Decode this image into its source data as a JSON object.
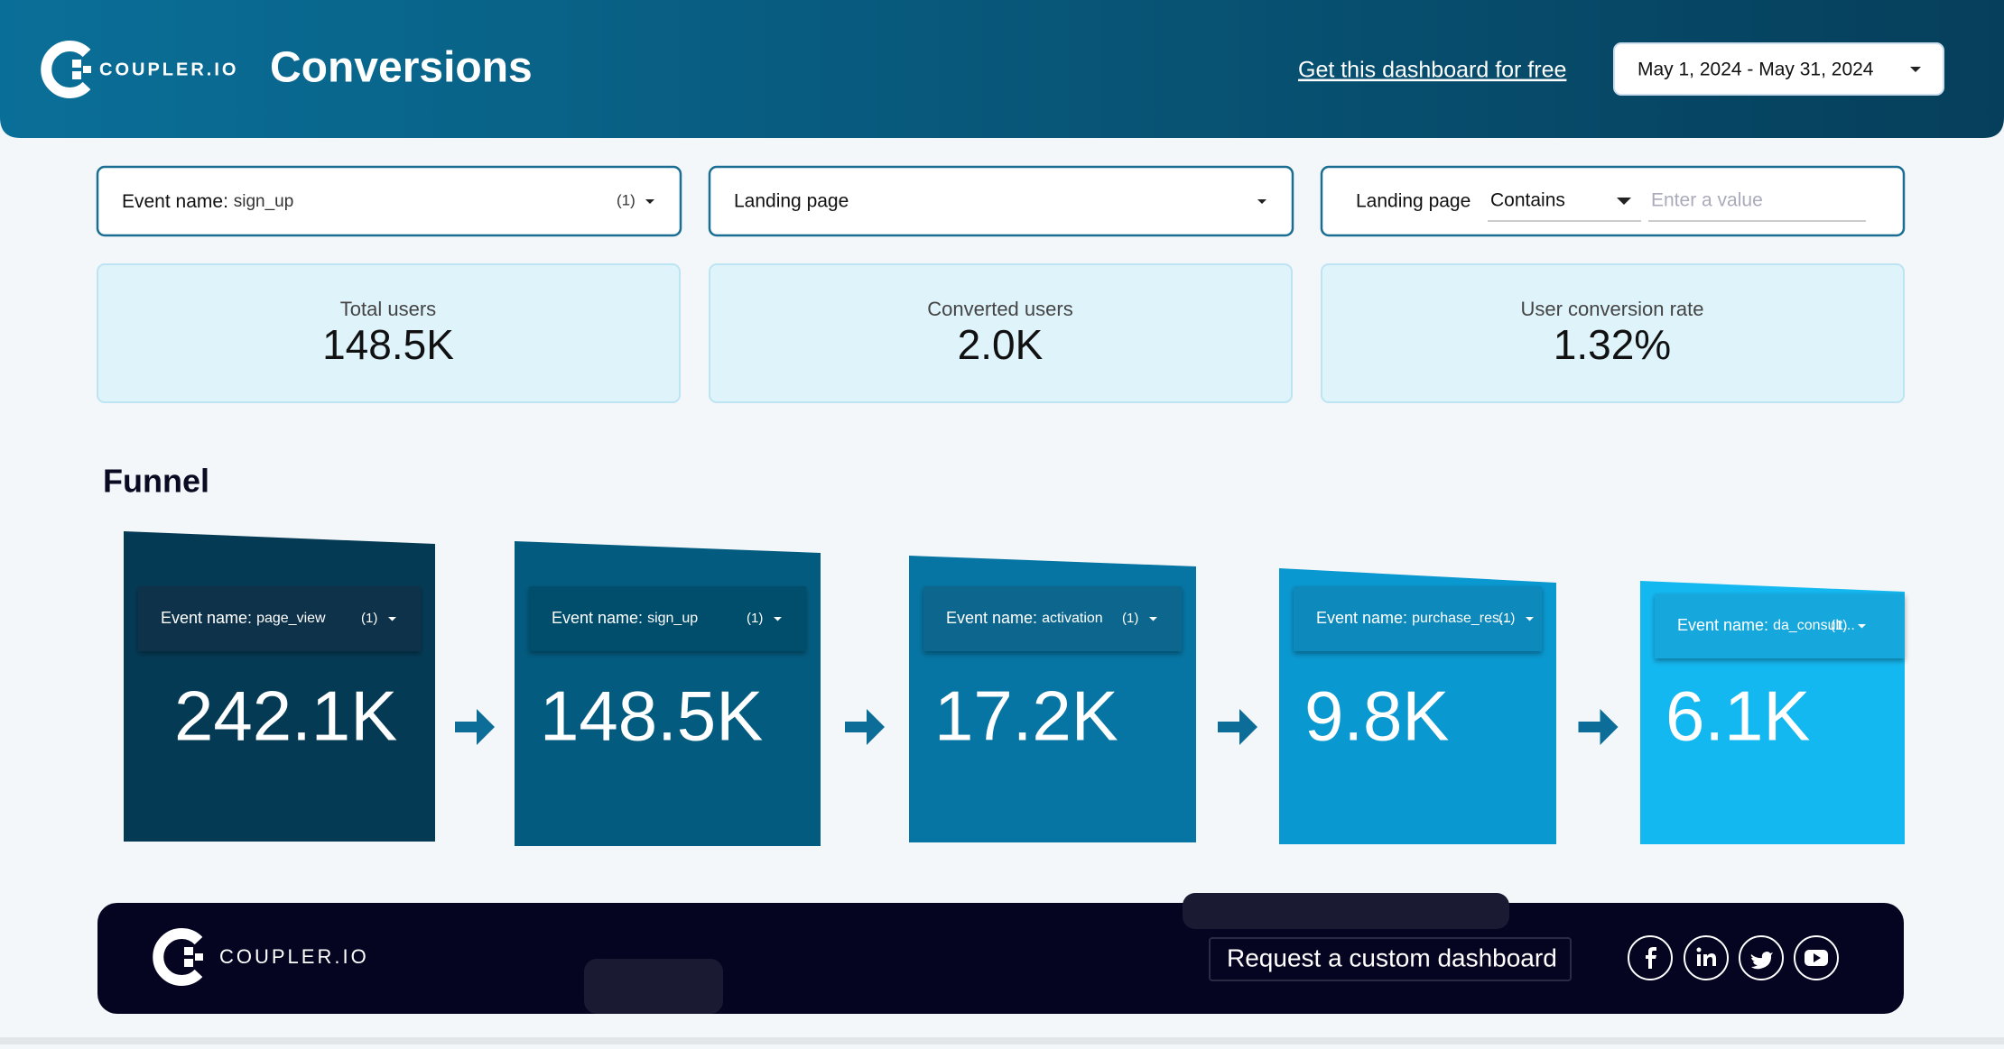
{
  "header": {
    "brand": "COUPLER.IO",
    "title": "Conversions",
    "link": "Get this dashboard for free",
    "date_range": "May 1, 2024 - May 31, 2024"
  },
  "filters": [
    {
      "label": "Event name:",
      "value": "sign_up",
      "count": "(1)"
    },
    {
      "label": "Landing page"
    },
    {
      "label": "Landing page",
      "operator": "Contains",
      "placeholder": "Enter a value"
    }
  ],
  "kpis": [
    {
      "label": "Total users",
      "value": "148.5K"
    },
    {
      "label": "Converted users",
      "value": "2.0K"
    },
    {
      "label": "User conversion rate",
      "value": "1.32%"
    }
  ],
  "funnel": {
    "title": "Funnel",
    "steps": [
      {
        "filter_label": "Event name:",
        "filter_value": "page_view",
        "count": "(1)",
        "value": "242.1K"
      },
      {
        "filter_label": "Event name:",
        "filter_value": "sign_up",
        "count": "(1)",
        "value": "148.5K"
      },
      {
        "filter_label": "Event name:",
        "filter_value": "activation",
        "count": "(1)",
        "value": "17.2K"
      },
      {
        "filter_label": "Event name:",
        "filter_value": "purchase_res...",
        "count": "(1)",
        "value": "9.8K"
      },
      {
        "filter_label": "Event name:",
        "filter_value": "da_consult...",
        "count": "(1)",
        "value": "6.1K"
      }
    ]
  },
  "footer": {
    "brand": "COUPLER.IO",
    "cta": "Request a custom dashboard"
  }
}
